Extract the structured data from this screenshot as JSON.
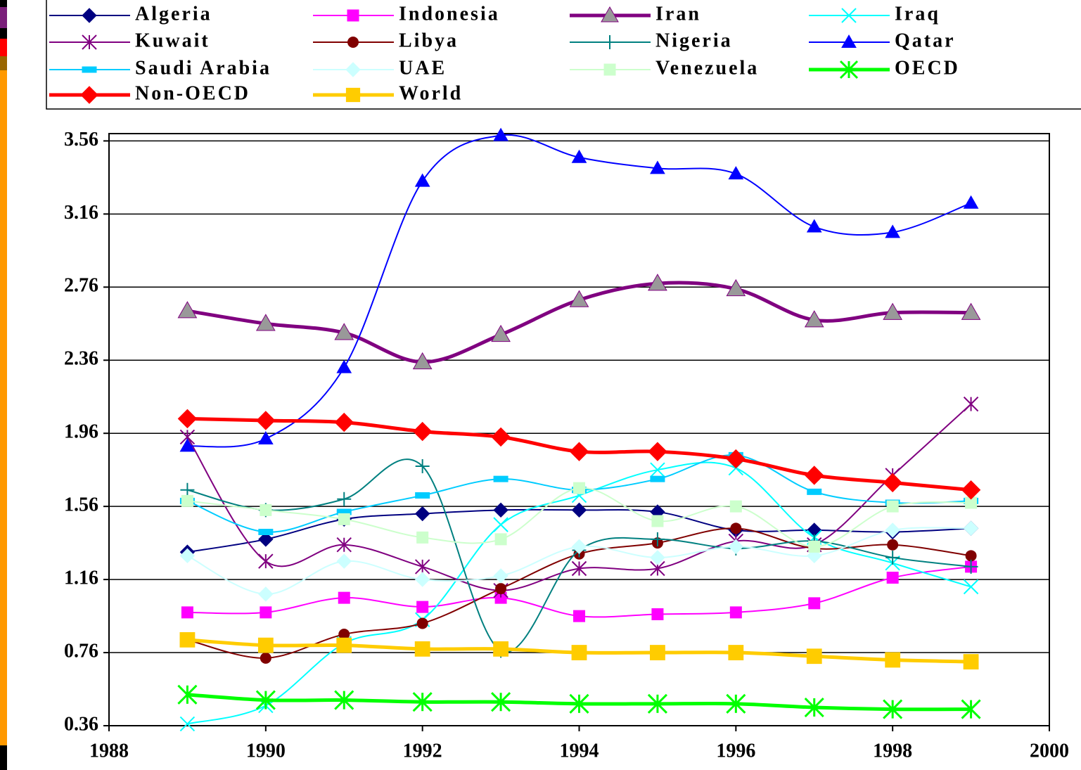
{
  "chart_data": {
    "type": "line",
    "x": [
      1989,
      1990,
      1991,
      1992,
      1993,
      1994,
      1995,
      1996,
      1997,
      1998,
      1999
    ],
    "xlim": [
      1988,
      2000
    ],
    "xticks": [
      1988,
      1990,
      1992,
      1994,
      1996,
      1998,
      2000
    ],
    "ylim": [
      0.36,
      3.6
    ],
    "yticks": [
      0.36,
      0.76,
      1.16,
      1.56,
      1.96,
      2.36,
      2.76,
      3.16,
      3.56
    ],
    "grid": true,
    "legend": "top",
    "series": [
      {
        "name": "Algeria",
        "color": "#000080",
        "marker": "diamond",
        "width": 2,
        "values": [
          1.31,
          1.38,
          1.49,
          1.52,
          1.54,
          1.54,
          1.53,
          1.43,
          1.43,
          1.42,
          1.44
        ]
      },
      {
        "name": "Indonesia",
        "color": "#ff00ff",
        "marker": "square",
        "width": 2,
        "values": [
          0.98,
          0.98,
          1.06,
          1.01,
          1.06,
          0.96,
          0.97,
          0.98,
          1.03,
          1.17,
          1.23
        ]
      },
      {
        "name": "Iran",
        "color": "#800080",
        "marker": "triangle",
        "marker_color": "#999999",
        "width": 5,
        "values": [
          2.63,
          2.56,
          2.51,
          2.35,
          2.5,
          2.69,
          2.78,
          2.75,
          2.58,
          2.62,
          2.62
        ]
      },
      {
        "name": "Iraq",
        "color": "#00ffff",
        "marker": "x",
        "width": 2,
        "values": [
          0.37,
          0.47,
          0.81,
          0.94,
          1.46,
          1.62,
          1.76,
          1.77,
          1.39,
          1.25,
          1.12
        ]
      },
      {
        "name": "Kuwait",
        "color": "#800080",
        "marker": "asterisk",
        "width": 2,
        "values": [
          1.94,
          1.26,
          1.35,
          1.23,
          1.1,
          1.22,
          1.22,
          1.37,
          1.35,
          1.73,
          2.12
        ]
      },
      {
        "name": "Libya",
        "color": "#800000",
        "marker": "circle",
        "width": 2,
        "values": [
          0.83,
          0.73,
          0.86,
          0.92,
          1.11,
          1.3,
          1.36,
          1.44,
          1.33,
          1.35,
          1.29
        ]
      },
      {
        "name": "Nigeria",
        "color": "#008080",
        "marker": "plus",
        "width": 2,
        "values": [
          1.65,
          1.54,
          1.6,
          1.78,
          0.77,
          1.32,
          1.38,
          1.33,
          1.37,
          1.28,
          1.23
        ]
      },
      {
        "name": "Qatar",
        "color": "#0000ff",
        "marker": "triangle",
        "width": 2,
        "values": [
          1.89,
          1.93,
          2.32,
          3.34,
          3.59,
          3.47,
          3.41,
          3.38,
          3.09,
          3.06,
          3.22
        ]
      },
      {
        "name": "Saudi Arabia",
        "color": "#00ccff",
        "marker": "dash",
        "width": 2,
        "values": [
          1.59,
          1.42,
          1.53,
          1.62,
          1.71,
          1.65,
          1.71,
          1.84,
          1.64,
          1.58,
          1.59
        ]
      },
      {
        "name": "UAE",
        "color": "#ccffff",
        "marker": "diamond",
        "width": 2,
        "values": [
          1.29,
          1.08,
          1.26,
          1.16,
          1.18,
          1.34,
          1.28,
          1.34,
          1.29,
          1.43,
          1.44
        ]
      },
      {
        "name": "Venezuela",
        "color": "#ccffcc",
        "marker": "square",
        "width": 2,
        "values": [
          1.59,
          1.54,
          1.49,
          1.39,
          1.38,
          1.66,
          1.48,
          1.56,
          1.34,
          1.56,
          1.58
        ]
      },
      {
        "name": "OECD",
        "color": "#00ff00",
        "marker": "asterisk",
        "width": 5,
        "values": [
          0.53,
          0.5,
          0.5,
          0.49,
          0.49,
          0.48,
          0.48,
          0.48,
          0.46,
          0.45,
          0.45
        ]
      },
      {
        "name": "Non-OECD",
        "color": "#ff0000",
        "marker": "diamond",
        "width": 5,
        "values": [
          2.04,
          2.03,
          2.02,
          1.97,
          1.94,
          1.86,
          1.86,
          1.82,
          1.73,
          1.69,
          1.65
        ]
      },
      {
        "name": "World",
        "color": "#ffcc00",
        "marker": "square",
        "width": 5,
        "values": [
          0.83,
          0.8,
          0.8,
          0.78,
          0.78,
          0.76,
          0.76,
          0.76,
          0.74,
          0.72,
          0.71
        ]
      }
    ]
  }
}
